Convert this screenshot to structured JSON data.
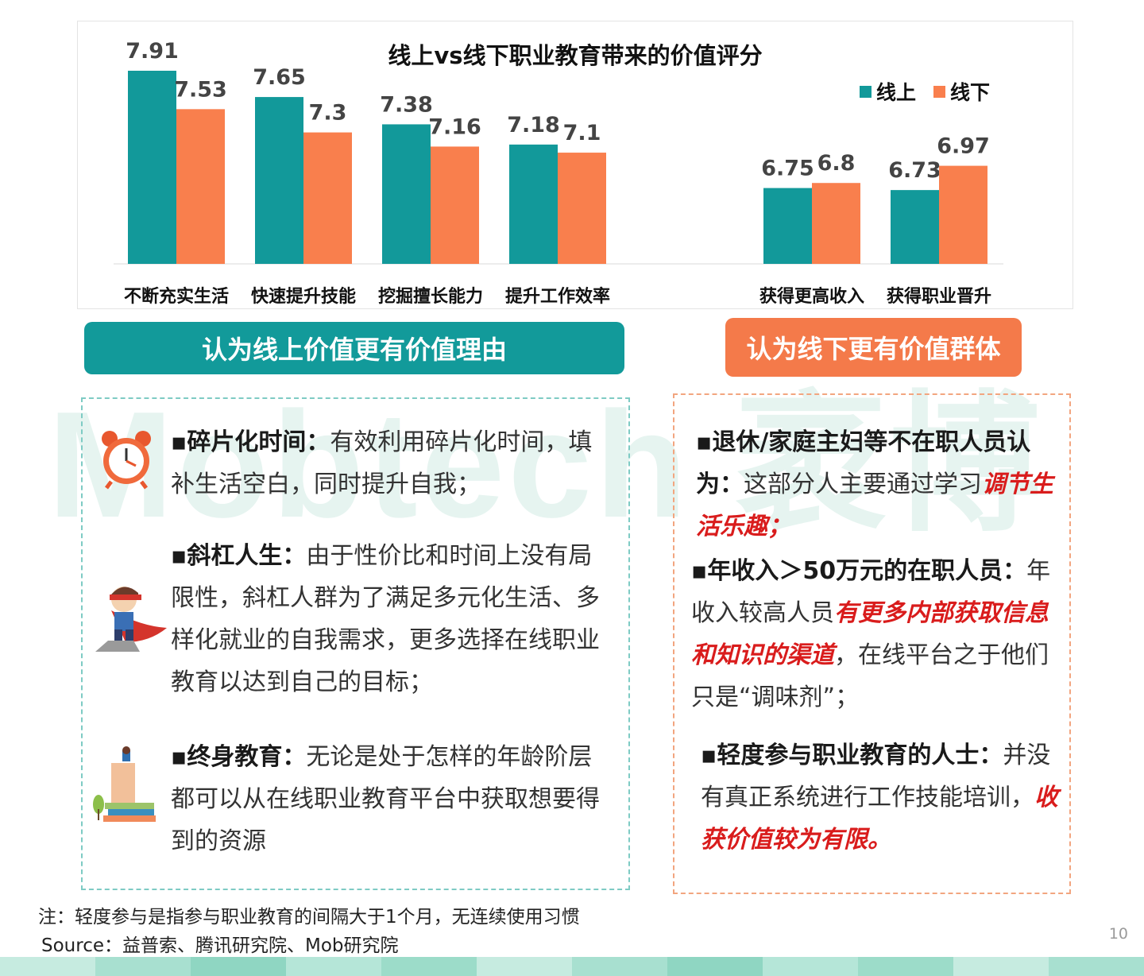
{
  "watermark": "Mobtech 袤博",
  "chart_data": {
    "type": "bar",
    "title": "线上vs线下职业教育带来的价值评分",
    "categories": [
      "不断充实生活",
      "快速提升技能",
      "挖掘擅长能力",
      "提升工作效率",
      "获得更高收入",
      "获得职业晋升"
    ],
    "series": [
      {
        "name": "线上",
        "values": [
          7.91,
          7.65,
          7.38,
          7.18,
          6.75,
          6.73
        ]
      },
      {
        "name": "线下",
        "values": [
          7.53,
          7.3,
          7.16,
          7.1,
          6.8,
          6.97
        ]
      }
    ],
    "value_labels": [
      [
        "7.91",
        "7.65",
        "7.38",
        "7.18",
        "6.75",
        "6.73"
      ],
      [
        "7.53",
        "7.3",
        "7.16",
        "7.1",
        "6.8",
        "6.97"
      ]
    ],
    "ylim": [
      6.0,
      8.0
    ],
    "legend_position": "top-right",
    "grid": false,
    "colors": {
      "online": "#12999a",
      "offline": "#f97f4d"
    }
  },
  "left_panel": {
    "header": "认为线上价值更有价值理由",
    "items": [
      {
        "icon": "alarm-clock-icon",
        "lead": "▪碎片化时间：",
        "text": "有效利用碎片化时间，填补生活空白，同时提升自我；"
      },
      {
        "icon": "superhero-icon",
        "lead": "▪斜杠人生：",
        "text": "由于性价比和时间上没有局限性，斜杠人群为了满足多元化生活、多样化就业的自我需求，更多选择在线职业教育以达到自己的目标；"
      },
      {
        "icon": "books-icon",
        "lead": "▪终身教育：",
        "text": "无论是处于怎样的年龄阶层都可以从在线职业教育平台中获取想要得到的资源"
      }
    ]
  },
  "right_panel": {
    "header": "认为线下更有价值群体",
    "items": [
      {
        "lead": "▪退休/家庭主妇等不在职人员认为：",
        "text_before": "这部分人主要通过学习",
        "highlight": "调节生活乐趣；",
        "text_after": ""
      },
      {
        "lead": "▪年收入＞50万元的在职人员：",
        "text_before": "年收入较高人员",
        "highlight": "有更多内部获取信息和知识的渠道",
        "text_after": "，在线平台之于他们只是“调味剂”；"
      },
      {
        "lead": "▪轻度参与职业教育的人士：",
        "text_before": "并没有真正系统进行工作技能培训，",
        "highlight": "收获价值较为有限。",
        "text_after": ""
      }
    ]
  },
  "footer": {
    "note": "注：轻度参与是指参与职业教育的间隔大于1个月，无连续使用习惯",
    "source": "Source：益普索、腾讯研究院、Mob研究院",
    "page_number": "10"
  },
  "colors": {
    "teal": "#129a9a",
    "orange": "#f47a4a",
    "highlight_red": "#d91c1c"
  }
}
